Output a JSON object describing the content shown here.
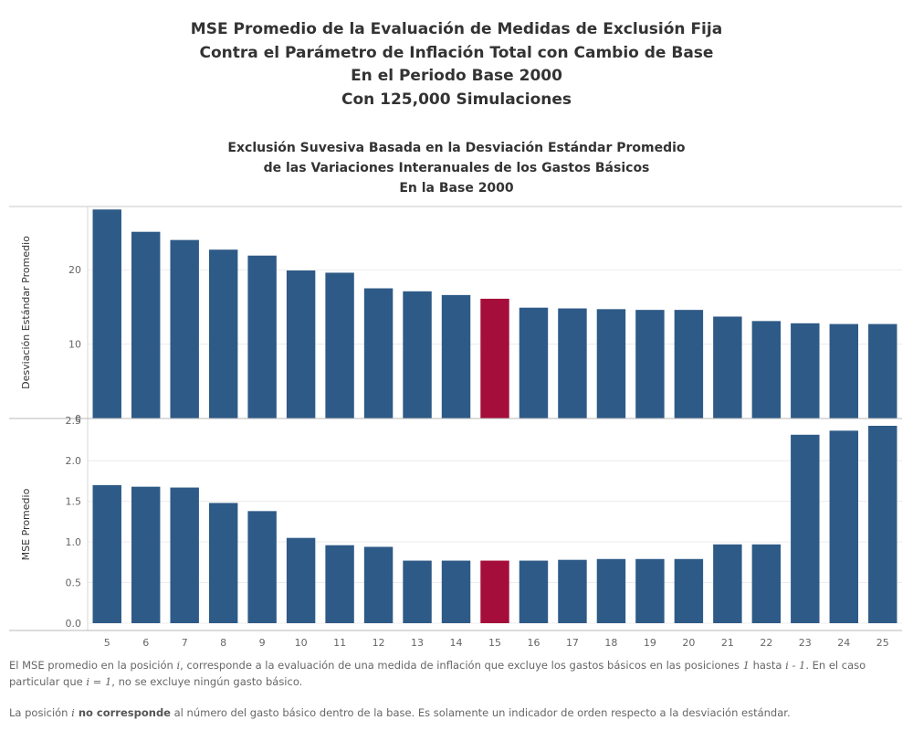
{
  "title_lines": [
    "MSE Promedio de la Evaluación de Medidas de Exclusión Fija",
    "Contra el Parámetro de Inflación Total con Cambio de Base",
    "En el Periodo Base 2000",
    "Con 125,000 Simulaciones"
  ],
  "subtitle_lines": [
    "Exclusión Suvesiva Basada en la Desviación Estándar Promedio",
    "de las Variaciones Interanuales de los Gastos Básicos",
    "En la Base 2000"
  ],
  "colors": {
    "bar": "#2e5a87",
    "highlight": "#a50e3a"
  },
  "chart_data": [
    {
      "type": "bar",
      "ylabel": "Desviación Estándar Promedio",
      "ylim": [
        0,
        28.5
      ],
      "yticks": [
        0,
        10,
        20
      ],
      "grid": true,
      "highlight_category": "15",
      "categories": [
        "5",
        "6",
        "7",
        "8",
        "9",
        "10",
        "11",
        "12",
        "13",
        "14",
        "15",
        "16",
        "17",
        "18",
        "19",
        "20",
        "21",
        "22",
        "23",
        "24",
        "25"
      ],
      "values": [
        28.1,
        25.1,
        24.0,
        22.7,
        21.9,
        19.9,
        19.6,
        17.5,
        17.1,
        16.6,
        16.1,
        14.9,
        14.8,
        14.7,
        14.6,
        14.6,
        13.7,
        13.1,
        12.8,
        12.7,
        12.7
      ]
    },
    {
      "type": "bar",
      "ylabel": "MSE Promedio",
      "ylim": [
        -0.09,
        2.52
      ],
      "yticks": [
        "0.0",
        "0.5",
        "1.0",
        "1.5",
        "2.0",
        "2.5"
      ],
      "grid": true,
      "highlight_category": "15",
      "categories": [
        "5",
        "6",
        "7",
        "8",
        "9",
        "10",
        "11",
        "12",
        "13",
        "14",
        "15",
        "16",
        "17",
        "18",
        "19",
        "20",
        "21",
        "22",
        "23",
        "24",
        "25"
      ],
      "values": [
        1.7,
        1.68,
        1.67,
        1.48,
        1.38,
        1.05,
        0.96,
        0.94,
        0.77,
        0.77,
        0.77,
        0.77,
        0.78,
        0.79,
        0.79,
        0.79,
        0.97,
        0.97,
        2.32,
        2.37,
        2.43
      ]
    }
  ],
  "footnotes": {
    "p1_a": "El MSE promedio en la posición ",
    "p1_var_i": "i",
    "p1_b": ", corresponde a la evaluación de una medida de inflación que excluye los gastos básicos en las posiciones ",
    "p1_one": "1",
    "p1_c": " hasta ",
    "p1_range_end": "i - 1",
    "p1_d": ". En el caso particular que ",
    "p1_case": "i = 1",
    "p1_e": ", no se excluye ningún gasto básico.",
    "p2_a": "La posición ",
    "p2_var_i": "i",
    "p2_bold": " no corresponde",
    "p2_b": " al número del gasto básico dentro de la base. Es solamente un indicador de orden respecto a la desviación estándar."
  }
}
